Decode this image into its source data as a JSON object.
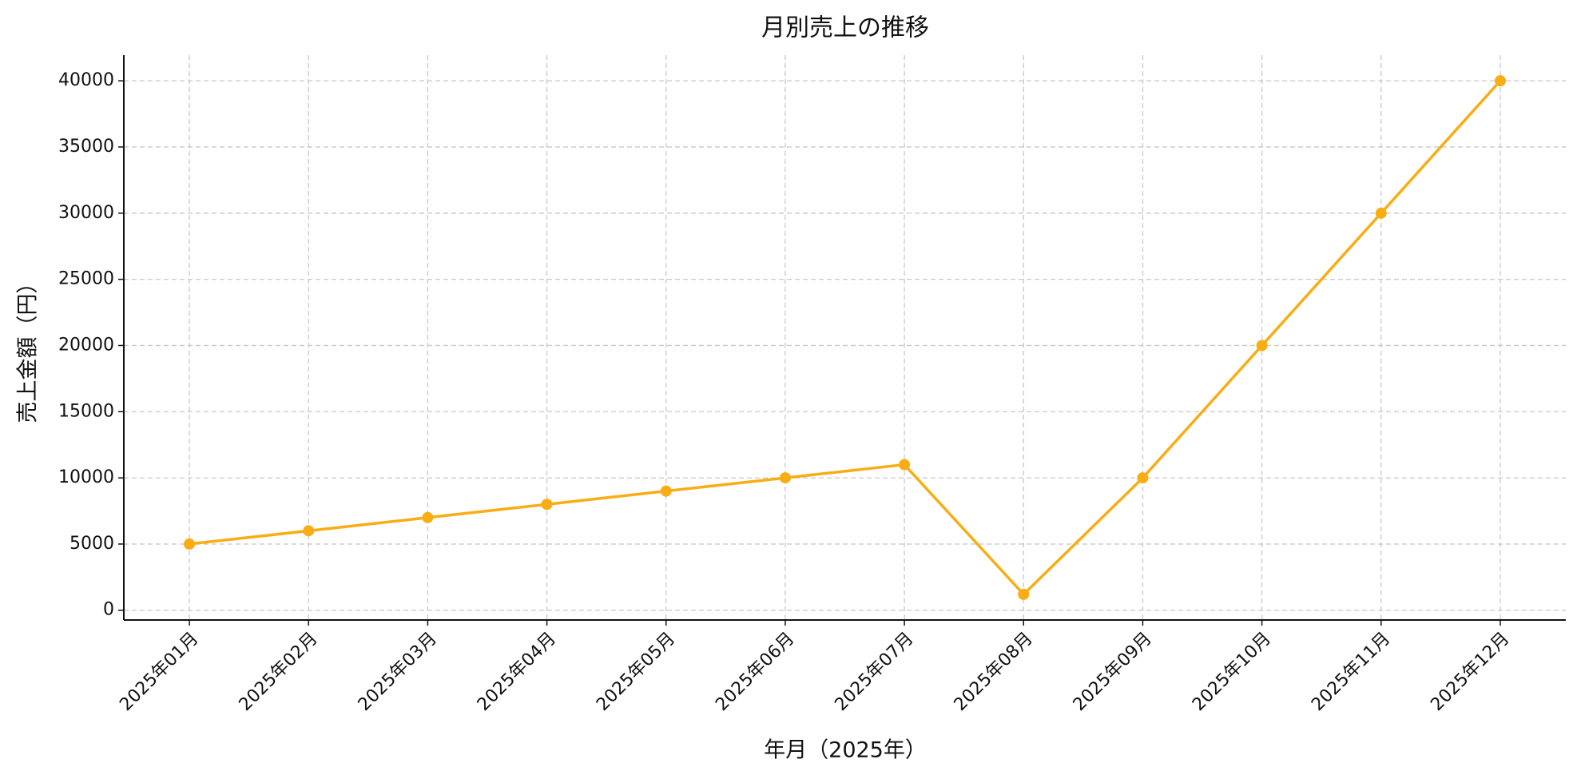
{
  "chart_data": {
    "type": "line",
    "title": "月別売上の推移",
    "x_label": "年月（2025年）",
    "y_label": "売上金額（円）",
    "categories": [
      "2025年01月",
      "2025年02月",
      "2025年03月",
      "2025年04月",
      "2025年05月",
      "2025年06月",
      "2025年07月",
      "2025年08月",
      "2025年09月",
      "2025年10月",
      "2025年11月",
      "2025年12月"
    ],
    "values": [
      5000,
      6000,
      7000,
      8000,
      9000,
      10000,
      11000,
      1200,
      10000,
      20000,
      30000,
      40000
    ],
    "color": "#f9ad14",
    "ylim": [
      -740,
      41940
    ],
    "yticks": [
      0,
      5000,
      10000,
      15000,
      20000,
      25000,
      30000,
      35000,
      40000
    ],
    "grid": true
  }
}
